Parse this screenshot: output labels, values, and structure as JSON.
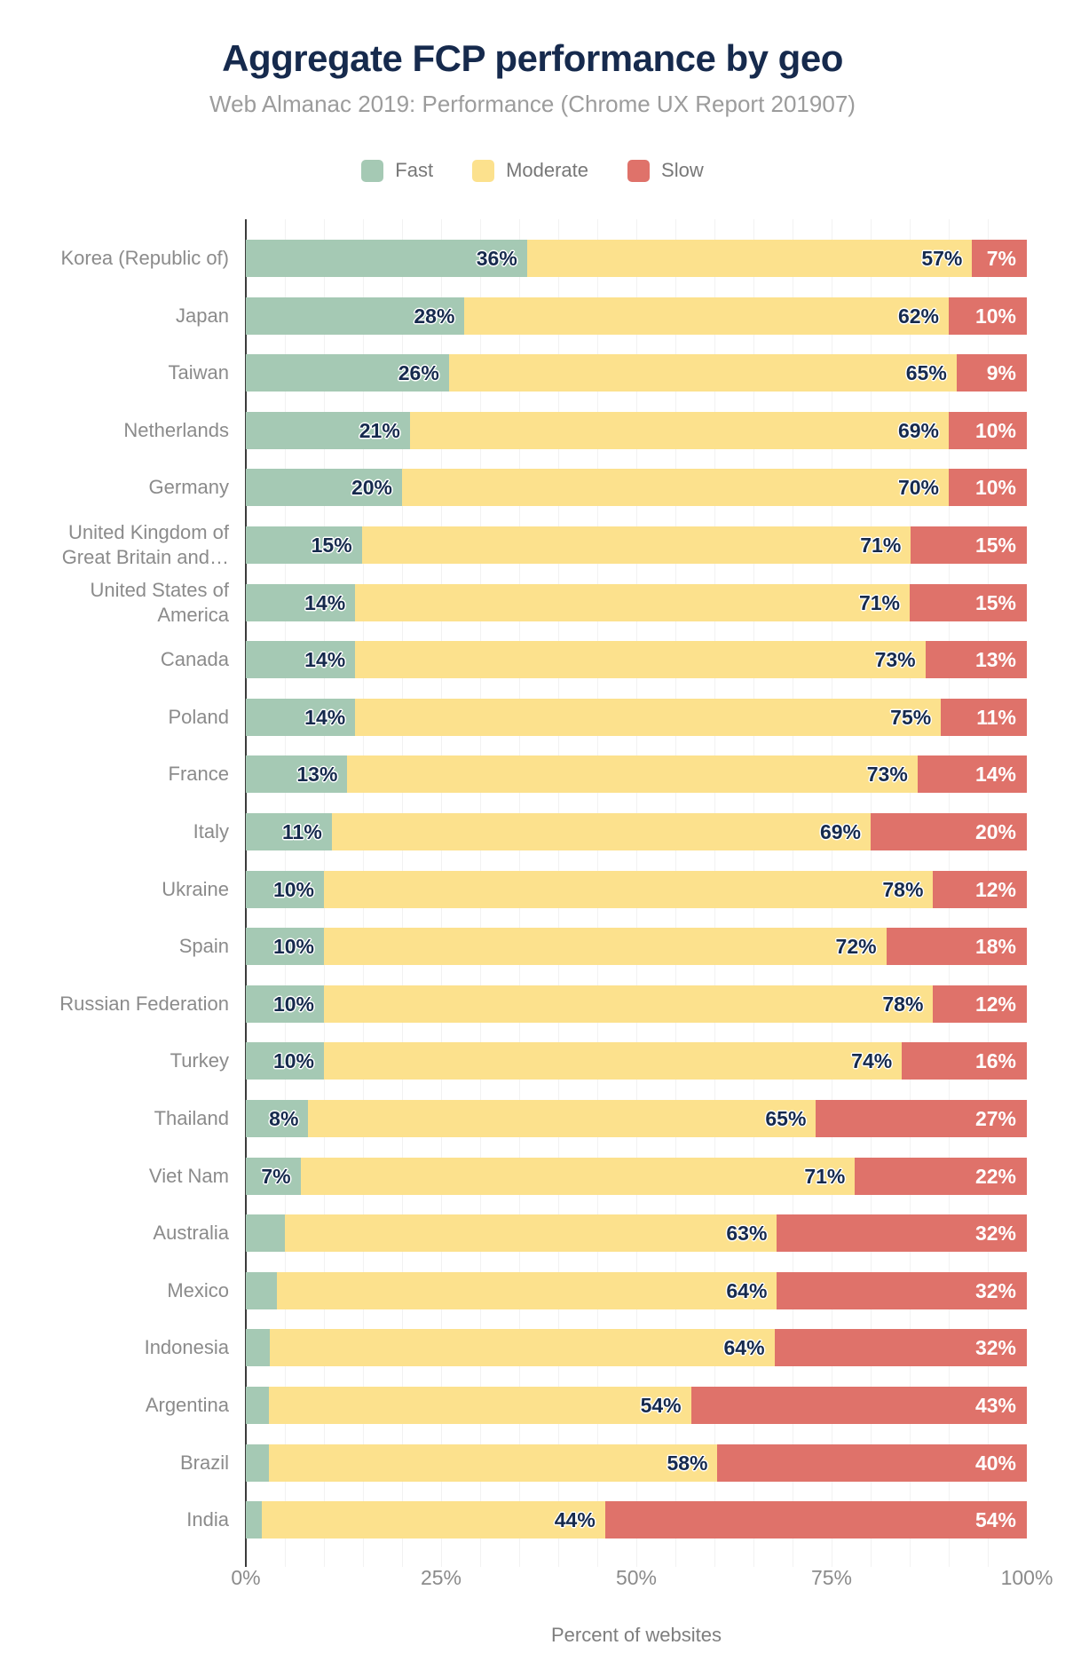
{
  "chart_data": {
    "type": "bar",
    "orientation": "horizontal",
    "stacked": true,
    "unit": "%",
    "title": "Aggregate FCP performance by geo",
    "subtitle": "Web Almanac 2019: Performance (Chrome UX Report 201907)",
    "xlabel": "Percent of websites",
    "ylabel": "",
    "xlim": [
      0,
      100
    ],
    "x_ticks": [
      "0%",
      "25%",
      "50%",
      "75%",
      "100%"
    ],
    "grid": "vertical gridlines every 5%, color #f2f2f2",
    "legend_position": "top center",
    "categories": [
      "Korea (Republic of)",
      "Japan",
      "Taiwan",
      "Netherlands",
      "Germany",
      "United Kingdom of Great Britain and…",
      "United States of America",
      "Canada",
      "Poland",
      "France",
      "Italy",
      "Ukraine",
      "Spain",
      "Russian Federation",
      "Turkey",
      "Thailand",
      "Viet Nam",
      "Australia",
      "Mexico",
      "Indonesia",
      "Argentina",
      "Brazil",
      "India"
    ],
    "category_display": [
      "Korea (Republic of)",
      "Japan",
      "Taiwan",
      "Netherlands",
      "Germany",
      "United Kingdom of\nGreat Britain and…",
      "United States of\nAmerica",
      "Canada",
      "Poland",
      "France",
      "Italy",
      "Ukraine",
      "Spain",
      "Russian Federation",
      "Turkey",
      "Thailand",
      "Viet Nam",
      "Australia",
      "Mexico",
      "Indonesia",
      "Argentina",
      "Brazil",
      "India"
    ],
    "series": [
      {
        "name": "Fast",
        "color": "#a5c9b4",
        "values": [
          36,
          28,
          26,
          21,
          20,
          15,
          14,
          14,
          14,
          13,
          11,
          10,
          10,
          10,
          10,
          8,
          7,
          5,
          4,
          3,
          3,
          3,
          2
        ]
      },
      {
        "name": "Moderate",
        "color": "#fce18d",
        "values": [
          57,
          62,
          65,
          69,
          70,
          71,
          71,
          73,
          75,
          73,
          69,
          78,
          72,
          78,
          74,
          65,
          71,
          63,
          64,
          64,
          54,
          58,
          44
        ]
      },
      {
        "name": "Slow",
        "color": "#df726a",
        "values": [
          7,
          10,
          9,
          10,
          10,
          15,
          15,
          13,
          11,
          14,
          20,
          12,
          18,
          12,
          16,
          27,
          22,
          32,
          32,
          32,
          43,
          40,
          54
        ]
      }
    ]
  },
  "palette": {
    "title_navy": "#162a4d",
    "value_label_dark": "#162a4d",
    "value_label_light": "#ffffff",
    "subtitle_gray": "#9c9c9c",
    "category_label_gray": "#8b8b8b",
    "legend_text_gray": "#777777",
    "tick_label_gray": "#8b8b8b",
    "axis_line": "#3b3b3b",
    "gridline": "#f2f2f2",
    "background": "#ffffff"
  }
}
